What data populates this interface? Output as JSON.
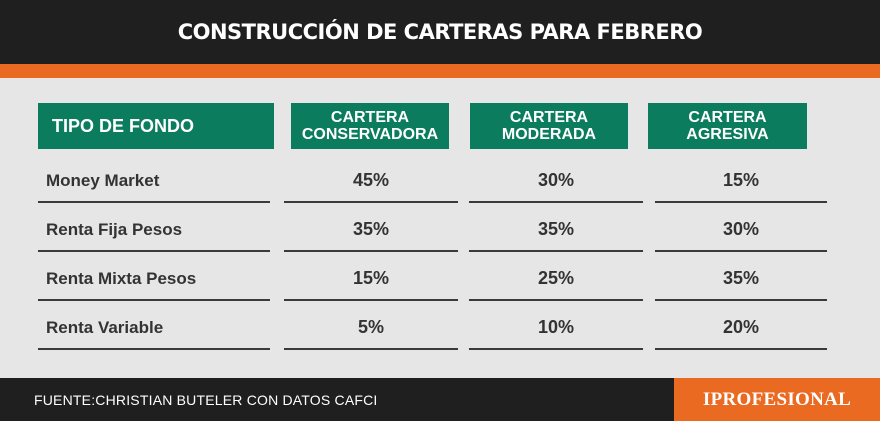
{
  "title": "CONSTRUCCIÓN DE CARTERAS PARA FEBRERO",
  "source": "FUENTE:CHRISTIAN BUTELER CON DATOS CAFCI",
  "brand": "IPROFESIONAL",
  "colors": {
    "header_green": "#0c7c5e",
    "accent_orange": "#ea6a22",
    "dark_bar": "#1f1f1f",
    "background": "#e6e6e6"
  },
  "chart_data": {
    "type": "table",
    "columns": [
      {
        "line1": "TIPO DE FONDO",
        "line2": ""
      },
      {
        "line1": "CARTERA",
        "line2": "CONSERVADORA"
      },
      {
        "line1": "CARTERA",
        "line2": "MODERADA"
      },
      {
        "line1": "CARTERA",
        "line2": "AGRESIVA"
      }
    ],
    "rows": [
      {
        "label": "Money Market",
        "values": [
          "45%",
          "30%",
          "15%"
        ]
      },
      {
        "label": "Renta Fija Pesos",
        "values": [
          "35%",
          "35%",
          "30%"
        ]
      },
      {
        "label": "Renta Mixta Pesos",
        "values": [
          "15%",
          "25%",
          "35%"
        ]
      },
      {
        "label": "Renta Variable",
        "values": [
          "5%",
          "10%",
          "20%"
        ]
      }
    ]
  }
}
